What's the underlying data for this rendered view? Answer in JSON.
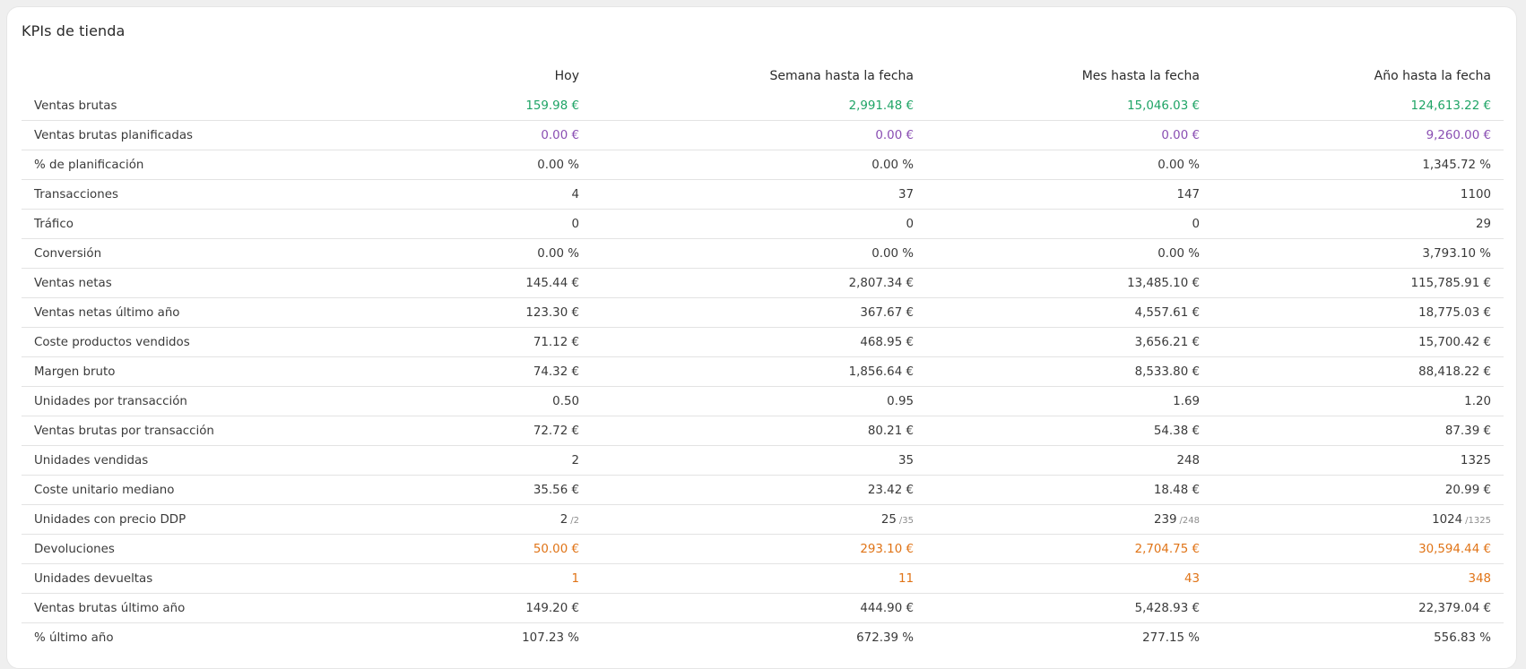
{
  "title": "KPIs de tienda",
  "columns": [
    "",
    "Hoy",
    "Semana hasta la fecha",
    "Mes hasta la fecha",
    "Año hasta la fecha"
  ],
  "colors": {
    "positive": "#1fa466",
    "planned": "#8a4fb3",
    "returns": "#e07417"
  },
  "rows": [
    {
      "label": "Ventas brutas",
      "style": "green",
      "values": [
        "159.98 €",
        "2,991.48 €",
        "15,046.03 €",
        "124,613.22 €"
      ]
    },
    {
      "label": "Ventas brutas planificadas",
      "style": "purple",
      "values": [
        "0.00 €",
        "0.00 €",
        "0.00 €",
        "9,260.00 €"
      ]
    },
    {
      "label": "% de planificación",
      "style": "",
      "values": [
        "0.00 %",
        "0.00 %",
        "0.00 %",
        "1,345.72 %"
      ]
    },
    {
      "label": "Transacciones",
      "style": "",
      "values": [
        "4",
        "37",
        "147",
        "1100"
      ]
    },
    {
      "label": "Tráfico",
      "style": "",
      "values": [
        "0",
        "0",
        "0",
        "29"
      ]
    },
    {
      "label": "Conversión",
      "style": "",
      "values": [
        "0.00 %",
        "0.00 %",
        "0.00 %",
        "3,793.10 %"
      ]
    },
    {
      "label": "Ventas netas",
      "style": "",
      "values": [
        "145.44 €",
        "2,807.34 €",
        "13,485.10 €",
        "115,785.91 €"
      ]
    },
    {
      "label": "Ventas netas último año",
      "style": "",
      "values": [
        "123.30 €",
        "367.67 €",
        "4,557.61 €",
        "18,775.03 €"
      ]
    },
    {
      "label": "Coste productos vendidos",
      "style": "",
      "values": [
        "71.12 €",
        "468.95 €",
        "3,656.21 €",
        "15,700.42 €"
      ]
    },
    {
      "label": "Margen bruto",
      "style": "",
      "values": [
        "74.32 €",
        "1,856.64 €",
        "8,533.80 €",
        "88,418.22 €"
      ]
    },
    {
      "label": "Unidades por transacción",
      "style": "",
      "values": [
        "0.50",
        "0.95",
        "1.69",
        "1.20"
      ]
    },
    {
      "label": "Ventas brutas por transacción",
      "style": "",
      "values": [
        "72.72 €",
        "80.21 €",
        "54.38 €",
        "87.39 €"
      ]
    },
    {
      "label": "Unidades vendidas",
      "style": "",
      "values": [
        "2",
        "35",
        "248",
        "1325"
      ]
    },
    {
      "label": "Coste unitario mediano",
      "style": "",
      "values": [
        "35.56 €",
        "23.42 €",
        "18.48 €",
        "20.99 €"
      ]
    },
    {
      "label": "Unidades con precio DDP",
      "style": "",
      "values": [
        "2",
        "25",
        "239",
        "1024"
      ],
      "subs": [
        "/2",
        "/35",
        "/248",
        "/1325"
      ]
    },
    {
      "label": "Devoluciones",
      "style": "orange",
      "values": [
        "50.00 €",
        "293.10 €",
        "2,704.75 €",
        "30,594.44 €"
      ]
    },
    {
      "label": "Unidades devueltas",
      "style": "orange",
      "values": [
        "1",
        "11",
        "43",
        "348"
      ]
    },
    {
      "label": "Ventas brutas último año",
      "style": "",
      "values": [
        "149.20 €",
        "444.90 €",
        "5,428.93 €",
        "22,379.04 €"
      ]
    },
    {
      "label": "% último año",
      "style": "",
      "values": [
        "107.23 %",
        "672.39 %",
        "277.15 %",
        "556.83 %"
      ]
    }
  ]
}
